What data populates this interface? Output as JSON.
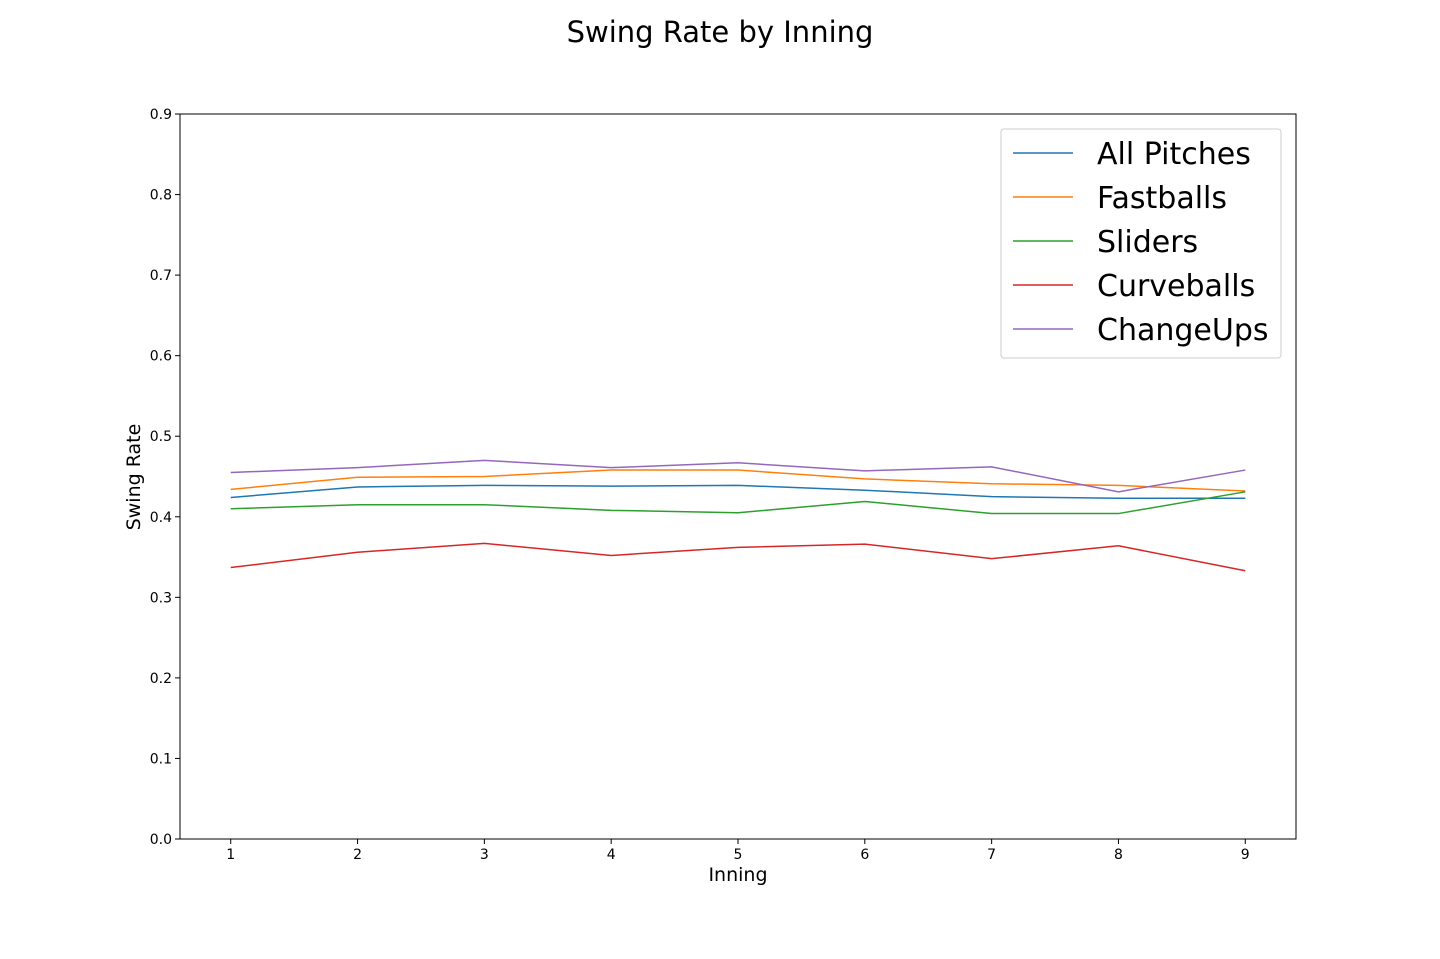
{
  "chart_data": {
    "type": "line",
    "title": "Swing Rate by Inning",
    "xlabel": "Inning",
    "ylabel": "Swing Rate",
    "x": [
      1,
      2,
      3,
      4,
      5,
      6,
      7,
      8,
      9
    ],
    "x_tick_labels": [
      "1",
      "2",
      "3",
      "4",
      "5",
      "6",
      "7",
      "8",
      "9"
    ],
    "ylim": [
      0.0,
      0.9
    ],
    "y_ticks": [
      0.0,
      0.1,
      0.2,
      0.3,
      0.4,
      0.5,
      0.6,
      0.7,
      0.8,
      0.9
    ],
    "y_tick_labels": [
      "0.0",
      "0.1",
      "0.2",
      "0.3",
      "0.4",
      "0.5",
      "0.6",
      "0.7",
      "0.8",
      "0.9"
    ],
    "grid": false,
    "legend_position": "top-right",
    "series": [
      {
        "name": "All Pitches",
        "color": "#1f77b4",
        "values": [
          0.424,
          0.437,
          0.439,
          0.438,
          0.439,
          0.433,
          0.425,
          0.423,
          0.423
        ]
      },
      {
        "name": "Fastballs",
        "color": "#ff7f0e",
        "values": [
          0.434,
          0.449,
          0.45,
          0.458,
          0.458,
          0.447,
          0.441,
          0.439,
          0.432
        ]
      },
      {
        "name": "Sliders",
        "color": "#2ca02c",
        "values": [
          0.41,
          0.415,
          0.415,
          0.408,
          0.405,
          0.419,
          0.404,
          0.404,
          0.431
        ]
      },
      {
        "name": "Curveballs",
        "color": "#d62728",
        "values": [
          0.337,
          0.356,
          0.367,
          0.352,
          0.362,
          0.366,
          0.348,
          0.364,
          0.333
        ]
      },
      {
        "name": "ChangeUps",
        "color": "#9467bd",
        "values": [
          0.455,
          0.461,
          0.47,
          0.461,
          0.467,
          0.457,
          0.462,
          0.431,
          0.458
        ]
      }
    ]
  }
}
